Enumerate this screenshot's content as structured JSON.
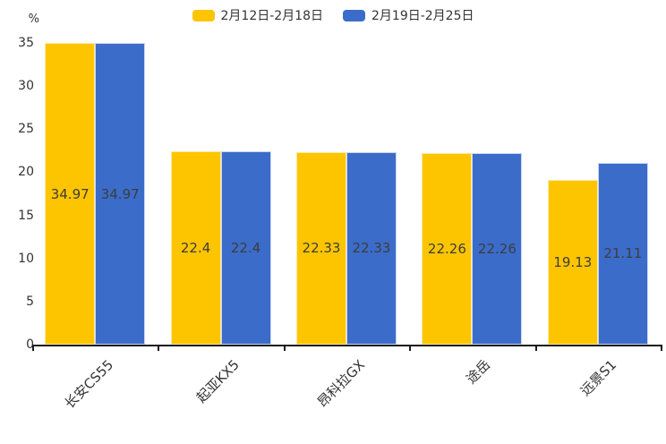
{
  "chart_data": {
    "type": "bar",
    "title": "",
    "ylabel_unit": "%",
    "categories": [
      "长安CS55",
      "起亚KX5",
      "昂科拉GX",
      "途岳",
      "远景S1"
    ],
    "series": [
      {
        "name": "2月12日-2月18日",
        "color": "#FDC500",
        "edge_color": "#FFE8A3",
        "values": [
          34.97,
          22.4,
          22.33,
          22.26,
          19.13
        ]
      },
      {
        "name": "2月19日-2月25日",
        "color": "#3B6CC9",
        "edge_color": "#C9D7F4",
        "values": [
          34.97,
          22.4,
          22.33,
          22.26,
          21.11
        ]
      }
    ],
    "ylim": [
      0,
      35
    ],
    "yticks": [
      0,
      5,
      10,
      15,
      20,
      25,
      30,
      35
    ],
    "grid": false,
    "legend_position": "top-center",
    "value_label_color": "#3d3d3d",
    "tick_label_color": "#333333",
    "axis_color": "#1c1c1c",
    "background": "#ffffff"
  }
}
